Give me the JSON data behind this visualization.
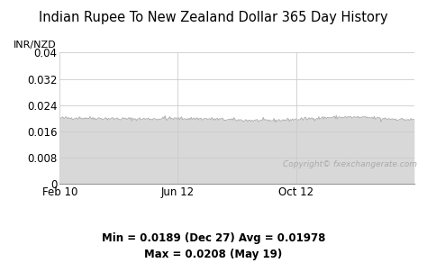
{
  "title": "Indian Rupee To New Zealand Dollar 365 Day History",
  "ylabel": "INR/NZD",
  "xlabel_ticks": [
    "Feb 10",
    "Jun 12",
    "Oct 12"
  ],
  "xlabel_tick_positions": [
    0,
    121,
    243
  ],
  "yticks": [
    0,
    0.008,
    0.016,
    0.024,
    0.032,
    0.04
  ],
  "ytick_labels": [
    "0",
    "0.008",
    "0.016",
    "0.024",
    "0.032",
    "0.04"
  ],
  "ylim": [
    0,
    0.04
  ],
  "xlim": [
    0,
    364
  ],
  "avg_value": 0.01978,
  "min_value": 0.0189,
  "max_value": 0.0208,
  "min_label": "Min = 0.0189 (Dec 27) Avg = 0.01978",
  "max_label": "Max = 0.0208 (May 19)",
  "copyright_text": "Copyright© fxexchangerate.com",
  "line_color": "#b0b0b0",
  "fill_color": "#d8d8d8",
  "grid_color": "#cccccc",
  "background_color": "#ffffff",
  "title_fontsize": 10.5,
  "label_fontsize": 8,
  "tick_fontsize": 8.5,
  "annotation_fontsize": 8.5
}
